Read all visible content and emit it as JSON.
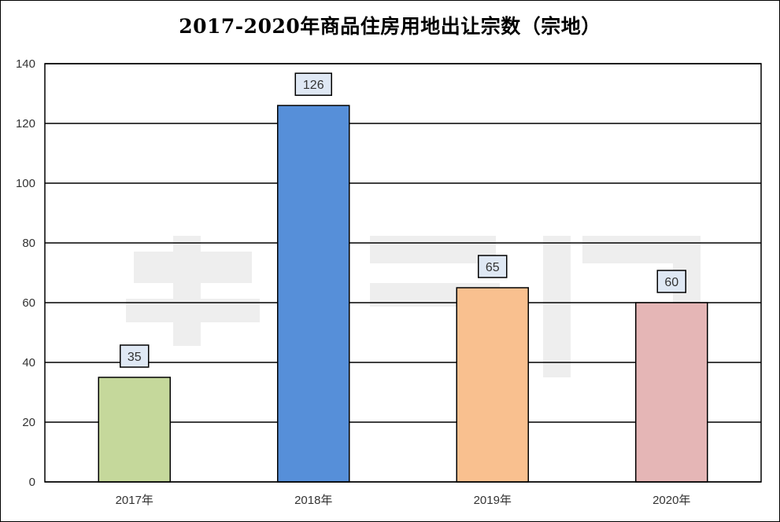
{
  "chart_data": {
    "type": "bar",
    "title": "2017-2020年商品住房用地出让宗数（宗地）",
    "categories": [
      "2017年",
      "2018年",
      "2019年",
      "2020年"
    ],
    "values": [
      35,
      126,
      65,
      60
    ],
    "data_labels": [
      "35",
      "126",
      "65",
      "60"
    ],
    "bar_colors": [
      "#c5d89b",
      "#568fd9",
      "#f9c08f",
      "#e5b6b6"
    ],
    "ylim": [
      0,
      140
    ],
    "yticks": [
      0,
      20,
      40,
      60,
      80,
      100,
      120,
      140
    ],
    "ytick_labels": [
      "0",
      "20",
      "40",
      "60",
      "80",
      "100",
      "120",
      "140"
    ],
    "xlabel": "",
    "ylabel": "",
    "grid": true,
    "legend": "none",
    "label_box_fill": "#dfe8f4"
  }
}
